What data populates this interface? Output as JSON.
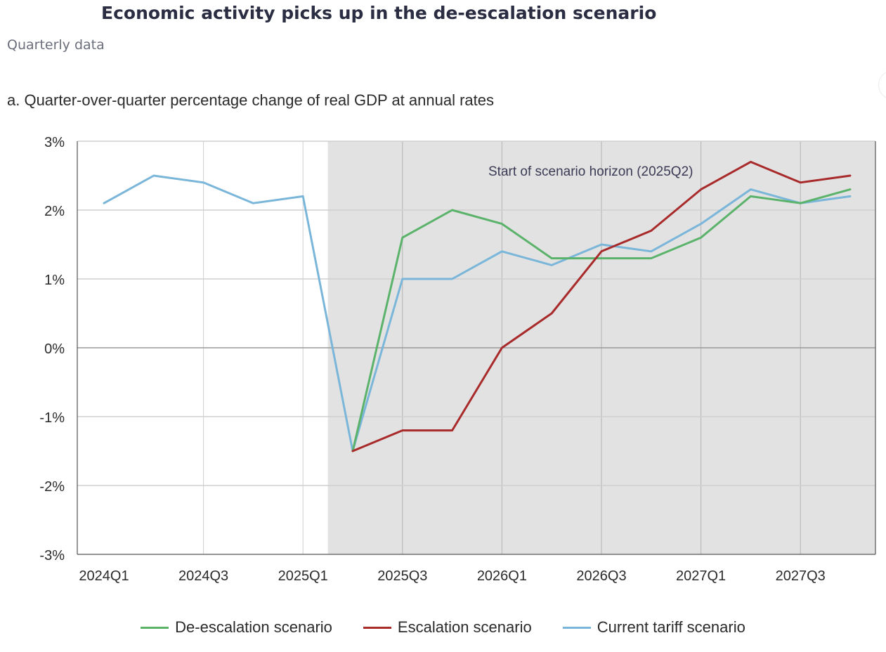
{
  "header": {
    "title": "Economic activity picks up in the de-escalation scenario",
    "subtitle": "Quarterly data"
  },
  "chart_data": {
    "type": "line",
    "title": "a. Quarter-over-quarter percentage change of real GDP at annual rates",
    "categories": [
      "2024Q1",
      "2024Q2",
      "2024Q3",
      "2024Q4",
      "2025Q1",
      "2025Q2",
      "2025Q3",
      "2025Q4",
      "2026Q1",
      "2026Q2",
      "2026Q3",
      "2026Q4",
      "2027Q1",
      "2027Q2",
      "2027Q3",
      "2027Q4"
    ],
    "tick_labels": [
      "2024Q1",
      "2024Q3",
      "2025Q1",
      "2025Q3",
      "2026Q1",
      "2026Q3",
      "2027Q1",
      "2027Q3"
    ],
    "y_tick_labels": [
      "3%",
      "2%",
      "1%",
      "0%",
      "-1%",
      "-2%",
      "-3%"
    ],
    "ylim": [
      -3,
      3
    ],
    "y_tick_values": [
      3,
      2,
      1,
      0,
      -1,
      -2,
      -3
    ],
    "series": [
      {
        "name": "Current tariff scenario",
        "color": "#7ab6d9",
        "values": [
          2.1,
          2.5,
          2.4,
          2.1,
          2.2,
          -1.5,
          1.0,
          1.0,
          1.4,
          1.2,
          1.5,
          1.4,
          1.8,
          2.3,
          2.1,
          2.2
        ]
      },
      {
        "name": "De-escalation scenario",
        "color": "#5bb36b",
        "values": [
          null,
          null,
          null,
          null,
          null,
          -1.5,
          1.6,
          2.0,
          1.8,
          1.3,
          1.3,
          1.3,
          1.6,
          2.2,
          2.1,
          2.3
        ]
      },
      {
        "name": "Escalation scenario",
        "color": "#a82a2a",
        "values": [
          null,
          null,
          null,
          null,
          null,
          -1.5,
          -1.2,
          -1.2,
          0.0,
          0.5,
          1.4,
          1.7,
          2.3,
          2.7,
          2.4,
          2.5
        ]
      }
    ],
    "shaded_region_start": "2025Q2",
    "annotation": "Start of scenario horizon (2025Q2)",
    "grid": true,
    "legend_position": "bottom-center"
  },
  "legend": [
    {
      "label": "De-escalation scenario",
      "color": "#5bb36b"
    },
    {
      "label": "Escalation scenario",
      "color": "#a82a2a"
    },
    {
      "label": "Current tariff scenario",
      "color": "#7ab6d9"
    }
  ]
}
